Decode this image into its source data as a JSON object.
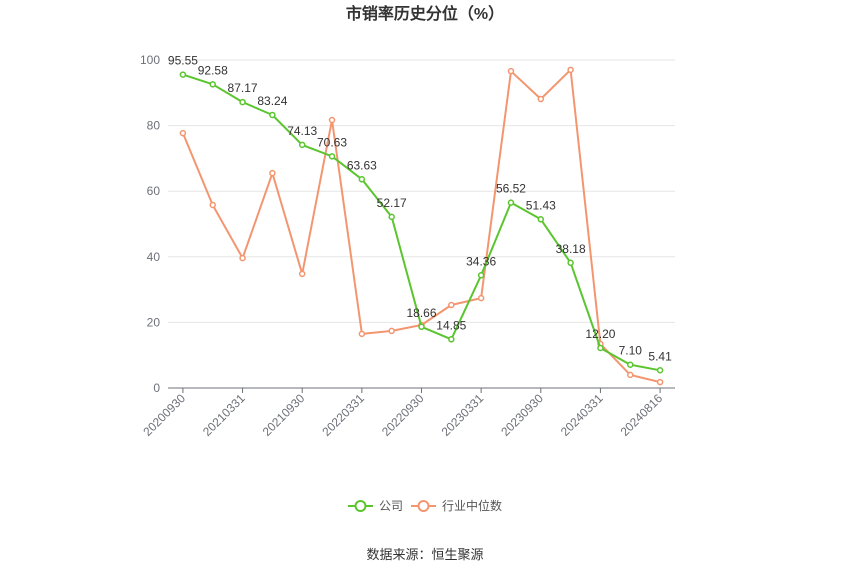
{
  "source": "数据来源：恒生聚源",
  "colors": {
    "grid": "#e6e6e6",
    "axis": "#6e7079",
    "background": "#ffffff"
  },
  "chart_data": {
    "type": "line",
    "title": "市销率历史分位（%）",
    "xlabel": "",
    "ylabel": "",
    "x_tick_labels": [
      "20200930",
      "20210331",
      "20210930",
      "20220331",
      "20220930",
      "20230331",
      "20230930",
      "20240331",
      "20240816"
    ],
    "y_ticks": [
      0,
      20,
      40,
      60,
      80,
      100
    ],
    "ylim": [
      0,
      100
    ],
    "grid": true,
    "legend_position": "bottom",
    "series": [
      {
        "name": "公司",
        "color": "#5ac52e",
        "show_data_labels": true,
        "values": [
          95.55,
          92.58,
          87.17,
          83.24,
          74.13,
          70.63,
          63.63,
          52.17,
          18.66,
          14.85,
          34.36,
          56.52,
          51.43,
          38.18,
          12.2,
          7.1,
          5.41
        ]
      },
      {
        "name": "行业中位数",
        "color": "#f39670",
        "show_data_labels": false,
        "values": [
          77.7,
          55.8,
          39.6,
          65.5,
          34.8,
          81.7,
          16.5,
          17.4,
          19.2,
          25.3,
          27.4,
          96.6,
          88.1,
          97.0,
          13.4,
          4.0,
          1.8
        ]
      }
    ]
  }
}
